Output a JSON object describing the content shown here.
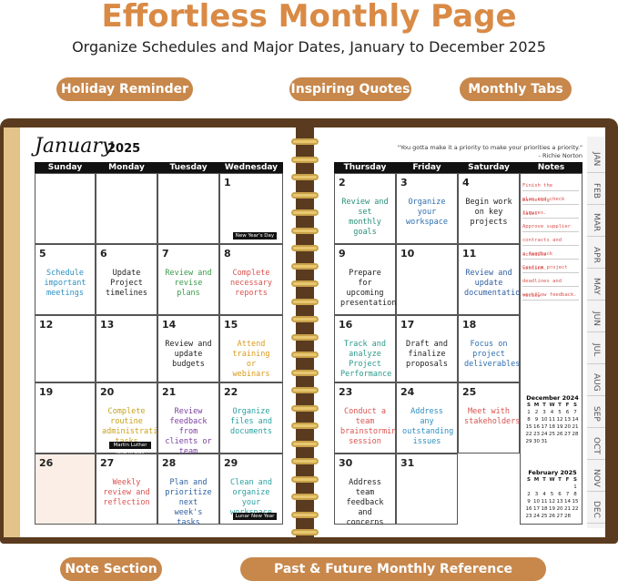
{
  "header": {
    "title": "Effortless Monthly Page",
    "subtitle": "Organize Schedules and Major Dates, January to December 2025"
  },
  "callouts": {
    "top": [
      "Holiday Reminder",
      "Inspiring Quotes",
      "Monthly Tabs"
    ],
    "bottom": [
      "Note Section",
      "Past & Future Monthly Reference Calendars"
    ]
  },
  "planner": {
    "month": "January",
    "year": "2025",
    "quote": "\"You gotta make it a priority to make your priorities a priority.\"",
    "quote_author": "- Richie Norton",
    "weekdays": [
      "Sunday",
      "Monday",
      "Tuesday",
      "Wednesday",
      "Thursday",
      "Friday",
      "Saturday"
    ],
    "notes_header": "Notes",
    "weeks": [
      [
        null,
        null,
        null,
        {
          "day": 1,
          "holiday": "New Year's Day"
        },
        {
          "day": 2,
          "task": "Review and set monthly goals",
          "color": "#2a8f7a"
        },
        {
          "day": 3,
          "task": "Organize your workspace",
          "color": "#2d6fb0"
        },
        {
          "day": 4,
          "task": "Begin work on key projects",
          "color": "#222222"
        }
      ],
      [
        {
          "day": 5,
          "task": "Schedule important meetings",
          "color": "#2d8fc0"
        },
        {
          "day": 6,
          "task": "Update Project timelines",
          "color": "#222222"
        },
        {
          "day": 7,
          "task": "Review and revise plans",
          "color": "#3a9a4a"
        },
        {
          "day": 8,
          "task": "Complete necessary reports",
          "color": "#d9534f"
        },
        {
          "day": 9,
          "task": "Prepare for upcoming presentations",
          "color": "#222222"
        },
        {
          "day": 10
        },
        {
          "day": 11,
          "task": "Review and update documentation",
          "color": "#2d5fa0"
        }
      ],
      [
        {
          "day": 12
        },
        {
          "day": 13
        },
        {
          "day": 14,
          "task": "Review and update budgets",
          "color": "#222222"
        },
        {
          "day": 15,
          "task": "Attend training or webinars",
          "color": "#d99a1a"
        },
        {
          "day": 16,
          "task": "Track and analyze Project Performance",
          "color": "#2a9a8a"
        },
        {
          "day": 17,
          "task": "Draft and finalize proposals",
          "color": "#222222"
        },
        {
          "day": 18,
          "task": "Focus on project deliverables",
          "color": "#2d6fb0"
        }
      ],
      [
        {
          "day": 19
        },
        {
          "day": 20,
          "task": "Complete routine administrative tasks",
          "color": "#c9a21a",
          "holiday": "Martin Luther King Jr. Day"
        },
        {
          "day": 21,
          "task": "Review feedback from clients or team",
          "color": "#7a3fa0"
        },
        {
          "day": 22,
          "task": "Organize files and documents",
          "color": "#2aa0a0"
        },
        {
          "day": 23,
          "task": "Conduct a team brainstorming session",
          "color": "#d9534f"
        },
        {
          "day": 24,
          "task": "Address any outstanding issues",
          "color": "#2d8fc0"
        },
        {
          "day": 25,
          "task": "Meet with stakeholders",
          "color": "#d9534f"
        }
      ],
      [
        {
          "day": 26
        },
        {
          "day": 27,
          "task": "Weekly review and reflection",
          "color": "#d9534f"
        },
        {
          "day": 28,
          "task": "Plan and prioritize next week's tasks",
          "color": "#2d5fa0"
        },
        {
          "day": 29,
          "task": "Clean and organize your workspace",
          "color": "#2aa0a0",
          "holiday": "Lunar New Year"
        },
        {
          "day": 30,
          "task": "Address team feedback and concerns",
          "color": "#222222"
        },
        {
          "day": 31
        }
      ]
    ],
    "notes": [
      "Finish the marketing",
      "plan and check sales",
      "figures.",
      "Approve supplier",
      "contracts and schedule",
      "a feedback session.",
      "Confirm project",
      "deadlines and review",
      "workflow feedback."
    ],
    "mini_calendars": [
      {
        "title": "December 2024",
        "days": [
          "S",
          "M",
          "T",
          "W",
          "T",
          "F",
          "S"
        ],
        "weeks": [
          [
            1,
            2,
            3,
            4,
            5,
            6,
            7
          ],
          [
            8,
            9,
            10,
            11,
            12,
            13,
            14
          ],
          [
            15,
            16,
            17,
            18,
            19,
            20,
            21
          ],
          [
            22,
            23,
            24,
            25,
            26,
            27,
            28
          ],
          [
            29,
            30,
            31
          ]
        ]
      },
      {
        "title": "February 2025",
        "days": [
          "S",
          "M",
          "T",
          "W",
          "T",
          "F",
          "S"
        ],
        "weeks": [
          [
            null,
            null,
            null,
            null,
            null,
            null,
            1
          ],
          [
            2,
            3,
            4,
            5,
            6,
            7,
            8
          ],
          [
            9,
            10,
            11,
            12,
            13,
            14,
            15
          ],
          [
            16,
            17,
            18,
            19,
            20,
            21,
            22
          ],
          [
            23,
            24,
            25,
            26,
            27,
            28
          ]
        ]
      }
    ],
    "tabs": [
      "JAN",
      "FEB",
      "MAR",
      "APR",
      "MAY",
      "JUN",
      "JUL",
      "AUG",
      "SEP",
      "OCT",
      "NOV",
      "DEC"
    ]
  }
}
